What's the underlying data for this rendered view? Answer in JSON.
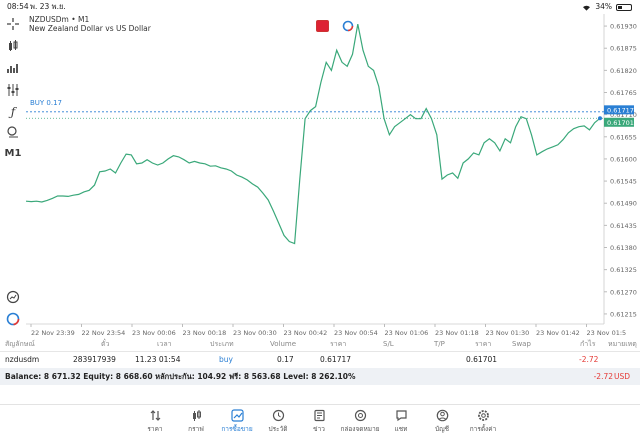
{
  "status": {
    "time": "08:54",
    "date": "พ. 23 พ.ย.",
    "battery": "34%",
    "battery_level": 0.34
  },
  "chart": {
    "symbol": "NZDUSDm • M1",
    "description": "New Zealand Dollar vs US Dollar",
    "timeframe": "M1",
    "buy_label": "BUY 0.17",
    "buy_price": 0.61717,
    "current_price": 0.61701,
    "line_color": "#3aa87a",
    "buy_line_color": "#2a7fd4",
    "y_ticks": [
      "0.61930",
      "0.61875",
      "0.61820",
      "0.61765",
      "0.61710",
      "0.61655",
      "0.61600",
      "0.61545",
      "0.61490",
      "0.61435",
      "0.61380",
      "0.61325",
      "0.61270",
      "0.61215"
    ],
    "x_ticks": [
      "22 Nov 23:39",
      "22 Nov 23:54",
      "23 Nov 00:06",
      "23 Nov 00:18",
      "23 Nov 00:30",
      "23 Nov 00:42",
      "23 Nov 00:54",
      "23 Nov 01:06",
      "23 Nov 01:18",
      "23 Nov 01:30",
      "23 Nov 01:42",
      "23 Nov 01:5"
    ],
    "price_tag_buy": "0.61717",
    "price_tag_current": "0.61701"
  },
  "chart_data": {
    "type": "line",
    "title": "NZDUSDm • M1",
    "ylim": [
      0.6119,
      0.6196
    ],
    "y_ticks": [
      0.6193,
      0.61875,
      0.6182,
      0.61765,
      0.6171,
      0.61655,
      0.616,
      0.61545,
      0.6149,
      0.61435,
      0.6138,
      0.61325,
      0.6127,
      0.61215
    ],
    "x_ticks": [
      "22 Nov 23:39",
      "22 Nov 23:54",
      "23 Nov 00:06",
      "23 Nov 00:18",
      "23 Nov 00:30",
      "23 Nov 00:42",
      "23 Nov 00:54",
      "23 Nov 01:06",
      "23 Nov 01:18",
      "23 Nov 01:30",
      "23 Nov 01:42",
      "23 Nov 01:5"
    ],
    "series": [
      {
        "values": [
          0.61495,
          0.61494,
          0.61495,
          0.61493,
          0.61497,
          0.61502,
          0.61508,
          0.61508,
          0.61507,
          0.6151,
          0.61512,
          0.61518,
          0.61522,
          0.61535,
          0.61568,
          0.6157,
          0.61575,
          0.61565,
          0.6159,
          0.61612,
          0.6161,
          0.61588,
          0.6159,
          0.61598,
          0.6159,
          0.61585,
          0.6159,
          0.616,
          0.61608,
          0.61605,
          0.61598,
          0.6159,
          0.61594,
          0.6159,
          0.61588,
          0.61582,
          0.61583,
          0.61578,
          0.61575,
          0.6157,
          0.6156,
          0.61555,
          0.61548,
          0.61538,
          0.6153,
          0.61515,
          0.61498,
          0.6147,
          0.6144,
          0.6141,
          0.61395,
          0.6139,
          0.6155,
          0.617,
          0.6172,
          0.6173,
          0.6179,
          0.6184,
          0.6182,
          0.6187,
          0.6184,
          0.6183,
          0.6186,
          0.61935,
          0.6187,
          0.6183,
          0.6182,
          0.6178,
          0.617,
          0.6166,
          0.6168,
          0.6169,
          0.617,
          0.6171,
          0.617,
          0.617,
          0.61725,
          0.617,
          0.6166,
          0.6155,
          0.6156,
          0.61565,
          0.61552,
          0.6159,
          0.616,
          0.61615,
          0.6161,
          0.6164,
          0.6165,
          0.6164,
          0.6162,
          0.6165,
          0.6164,
          0.6168,
          0.61705,
          0.617,
          0.6166,
          0.6161,
          0.61618,
          0.61625,
          0.6163,
          0.61635,
          0.61648,
          0.61665,
          0.61675,
          0.6168,
          0.61682,
          0.61672,
          0.6169,
          0.61701
        ]
      }
    ]
  },
  "table": {
    "headers": [
      "สัญลักษณ์",
      "ตั๋ว",
      "เวลา",
      "ประเภท",
      "Volume",
      "ราคา",
      "S/L",
      "T/P",
      "ราคา",
      "Swap",
      "กำไร",
      "หมายเหตุ"
    ],
    "row": {
      "symbol": "nzdusdm",
      "ticket": "283917939",
      "time": "11.23 01:54",
      "type": "buy",
      "volume": "0.17",
      "open_price": "0.61717",
      "sl": "",
      "tp": "",
      "price": "0.61701",
      "swap": "",
      "profit": "-2.72",
      "comment": ""
    }
  },
  "balance": {
    "text": "Balance: 8 671.32 Equity: 8 668.60 หลักประกัน: 104.92 ฟรี: 8 563.68 Level: 8 262.10%",
    "profit": "-2.72",
    "currency": "USD"
  },
  "nav": [
    {
      "label": "ราคา",
      "icon": "quotes-icon"
    },
    {
      "label": "กราฟ",
      "icon": "chart-icon"
    },
    {
      "label": "การซื้อขาย",
      "icon": "trade-icon",
      "active": true
    },
    {
      "label": "ประวัติ",
      "icon": "history-icon"
    },
    {
      "label": "ข่าว",
      "icon": "news-icon"
    },
    {
      "label": "กล่องจดหมาย",
      "icon": "mailbox-icon"
    },
    {
      "label": "แชท",
      "icon": "chat-icon"
    },
    {
      "label": "บัญชี",
      "icon": "account-icon"
    },
    {
      "label": "การตั้งค่า",
      "icon": "settings-icon"
    }
  ]
}
